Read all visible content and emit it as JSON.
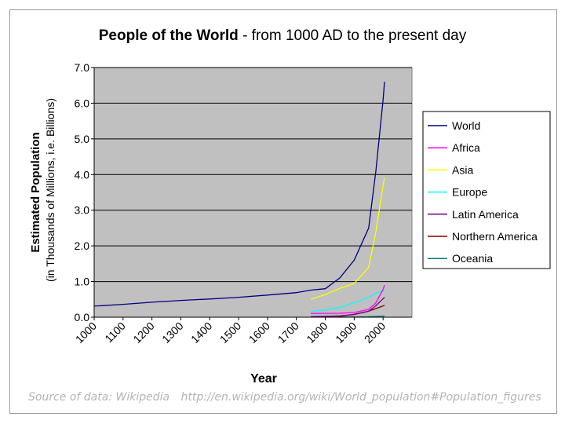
{
  "chart_data": {
    "type": "line",
    "title_bold": "People of the World",
    "title_rest": " - from 1000 AD to the present day",
    "xlabel": "Year",
    "ylabel_main": "Estimated Population",
    "ylabel_sub": "(in Thousands of Millions, i.e. Billions)",
    "xlim": [
      1000,
      2100
    ],
    "ylim": [
      0,
      7
    ],
    "x_ticks": [
      "1000",
      "1100",
      "1200",
      "1300",
      "1400",
      "1500",
      "1600",
      "1700",
      "1800",
      "1900",
      "2000"
    ],
    "x_tick_values": [
      1000,
      1100,
      1200,
      1300,
      1400,
      1500,
      1600,
      1700,
      1800,
      1900,
      2000
    ],
    "y_ticks": [
      "0.0",
      "1.0",
      "2.0",
      "3.0",
      "4.0",
      "5.0",
      "6.0",
      "7.0"
    ],
    "y_tick_values": [
      0,
      1,
      2,
      3,
      4,
      5,
      6,
      7
    ],
    "plot_background": "#c0c0c0",
    "series": [
      {
        "name": "World",
        "color": "#000080",
        "points": [
          [
            1000,
            0.31
          ],
          [
            1100,
            0.36
          ],
          [
            1200,
            0.42
          ],
          [
            1300,
            0.47
          ],
          [
            1400,
            0.51
          ],
          [
            1500,
            0.56
          ],
          [
            1600,
            0.62
          ],
          [
            1700,
            0.69
          ],
          [
            1750,
            0.76
          ],
          [
            1800,
            0.8
          ],
          [
            1850,
            1.1
          ],
          [
            1900,
            1.6
          ],
          [
            1950,
            2.5
          ],
          [
            1975,
            4.1
          ],
          [
            2000,
            6.1
          ],
          [
            2005,
            6.6
          ]
        ]
      },
      {
        "name": "Africa",
        "color": "#ff00ff",
        "points": [
          [
            1750,
            0.106
          ],
          [
            1800,
            0.107
          ],
          [
            1850,
            0.111
          ],
          [
            1900,
            0.133
          ],
          [
            1950,
            0.221
          ],
          [
            1975,
            0.406
          ],
          [
            2000,
            0.78
          ],
          [
            2005,
            0.9
          ]
        ]
      },
      {
        "name": "Asia",
        "color": "#ffff00",
        "points": [
          [
            1750,
            0.502
          ],
          [
            1800,
            0.635
          ],
          [
            1850,
            0.809
          ],
          [
            1900,
            0.947
          ],
          [
            1950,
            1.4
          ],
          [
            1975,
            2.4
          ],
          [
            2000,
            3.7
          ],
          [
            2005,
            3.9
          ]
        ]
      },
      {
        "name": "Europe",
        "color": "#00ffff",
        "points": [
          [
            1750,
            0.163
          ],
          [
            1800,
            0.203
          ],
          [
            1850,
            0.276
          ],
          [
            1900,
            0.408
          ],
          [
            1950,
            0.547
          ],
          [
            1975,
            0.676
          ],
          [
            2000,
            0.729
          ],
          [
            2005,
            0.73
          ]
        ]
      },
      {
        "name": "Latin America",
        "color": "#800080",
        "points": [
          [
            1750,
            0.016
          ],
          [
            1800,
            0.024
          ],
          [
            1850,
            0.038
          ],
          [
            1900,
            0.074
          ],
          [
            1950,
            0.167
          ],
          [
            1975,
            0.322
          ],
          [
            2000,
            0.52
          ],
          [
            2005,
            0.56
          ]
        ]
      },
      {
        "name": "Northern America",
        "color": "#800000",
        "points": [
          [
            1750,
            0.002
          ],
          [
            1800,
            0.007
          ],
          [
            1850,
            0.026
          ],
          [
            1900,
            0.082
          ],
          [
            1950,
            0.172
          ],
          [
            1975,
            0.243
          ],
          [
            2000,
            0.316
          ],
          [
            2005,
            0.33
          ]
        ]
      },
      {
        "name": "Oceania",
        "color": "#008080",
        "points": [
          [
            1750,
            0.002
          ],
          [
            1800,
            0.002
          ],
          [
            1850,
            0.002
          ],
          [
            1900,
            0.006
          ],
          [
            1950,
            0.013
          ],
          [
            1975,
            0.021
          ],
          [
            2000,
            0.031
          ],
          [
            2005,
            0.033
          ]
        ]
      }
    ]
  },
  "source": {
    "prefix": "Source of data: Wikipedia",
    "url": "http://en.wikipedia.org/wiki/World_population#Population_figures"
  }
}
